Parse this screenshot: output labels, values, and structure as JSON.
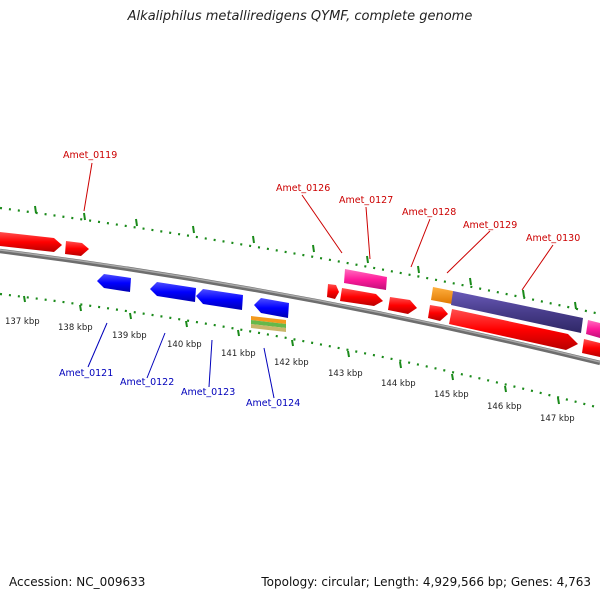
{
  "title": "Alkaliphilus metalliredigens QYMF, complete genome",
  "footer": {
    "accession": "Accession: NC_009633",
    "stats": "Topology: circular; Length: 4,929,566 bp; Genes: 4,763"
  },
  "colors": {
    "forward_label": "#cc0000",
    "reverse_label": "#0000bb",
    "backbone": "#808080",
    "ticks": "#1a8a1a"
  },
  "kbp_labels": [
    "137 kbp",
    "138 kbp",
    "139 kbp",
    "140 kbp",
    "141 kbp",
    "142 kbp",
    "143 kbp",
    "144 kbp",
    "145 kbp",
    "146 kbp",
    "147 kbp"
  ],
  "gene_labels": [
    {
      "id": "Amet_0119",
      "text": "Amet_0119",
      "strand": "forward"
    },
    {
      "id": "Amet_0126",
      "text": "Amet_0126",
      "strand": "forward"
    },
    {
      "id": "Amet_0127",
      "text": "Amet_0127",
      "strand": "forward"
    },
    {
      "id": "Amet_0128",
      "text": "Amet_0128",
      "strand": "forward"
    },
    {
      "id": "Amet_0129",
      "text": "Amet_0129",
      "strand": "forward"
    },
    {
      "id": "Amet_0130",
      "text": "Amet_0130",
      "strand": "forward"
    },
    {
      "id": "Amet_0121",
      "text": "Amet_0121",
      "strand": "reverse"
    },
    {
      "id": "Amet_0122",
      "text": "Amet_0122",
      "strand": "reverse"
    },
    {
      "id": "Amet_0123",
      "text": "Amet_0123",
      "strand": "reverse"
    },
    {
      "id": "Amet_0124",
      "text": "Amet_0124",
      "strand": "reverse"
    }
  ]
}
